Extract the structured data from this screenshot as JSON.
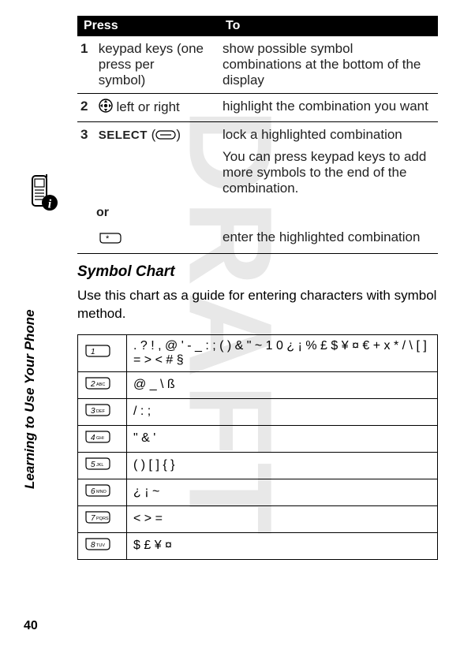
{
  "watermark": "DRAFT",
  "sidebar": {
    "vertical_label": "Learning to Use Your Phone",
    "page_number": "40"
  },
  "press_table": {
    "header": {
      "press": "Press",
      "to": "To"
    },
    "rows": [
      {
        "num": "1",
        "press": "keypad keys (one press per symbol)",
        "to": "show possible symbol combinations at the bottom of the display"
      },
      {
        "num": "2",
        "press_suffix": " left or right",
        "to": " highlight the combination you want"
      },
      {
        "num": "3",
        "select_label": "SELECT",
        "to": "lock a highlighted combination",
        "to_extra": "You can press keypad keys to add more symbols to the end of the combination."
      },
      {
        "or": "or",
        "to": "enter the highlighted combination"
      }
    ]
  },
  "section": {
    "heading": "Symbol Chart",
    "intro": "Use this chart as a guide for entering characters with symbol method."
  },
  "symbol_chart": {
    "rows": [
      {
        "key": "1",
        "syms": ". ? ! , @ ' - _ : ; ( ) & \" ~ 1 0 ¿ ¡ % £ $ ¥ ¤ € + x * / \\ [ ] = > < # §"
      },
      {
        "key": "2",
        "syms": "@ _ \\    ß"
      },
      {
        "key": "3",
        "syms": "/ : ;"
      },
      {
        "key": "4",
        "syms": "\" & '"
      },
      {
        "key": "5",
        "syms": "( ) [ ] { }"
      },
      {
        "key": "6",
        "syms": "¿ ¡ ~"
      },
      {
        "key": "7",
        "syms": "< > ="
      },
      {
        "key": "8",
        "syms": "$ £ ¥ ¤"
      }
    ],
    "key_sublabels": {
      "1": "",
      "2": "ABC",
      "3": "DEF",
      "4": "GHI",
      "5": "JKL",
      "6": "MNO",
      "7": "PQRS",
      "8": "TUV"
    }
  }
}
